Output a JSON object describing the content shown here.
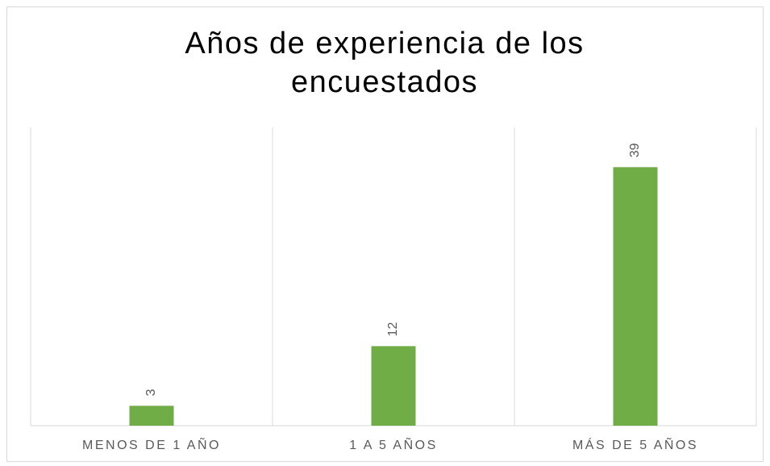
{
  "chart_data": {
    "type": "bar",
    "title": "Años de experiencia de los encuestados",
    "categories": [
      "MENOS DE 1 AÑO",
      "1 A 5 AÑOS",
      "MÁS DE 5 AÑOS"
    ],
    "values": [
      3,
      12,
      39
    ],
    "color": "#70ad47",
    "ylim": [
      0,
      45
    ]
  }
}
